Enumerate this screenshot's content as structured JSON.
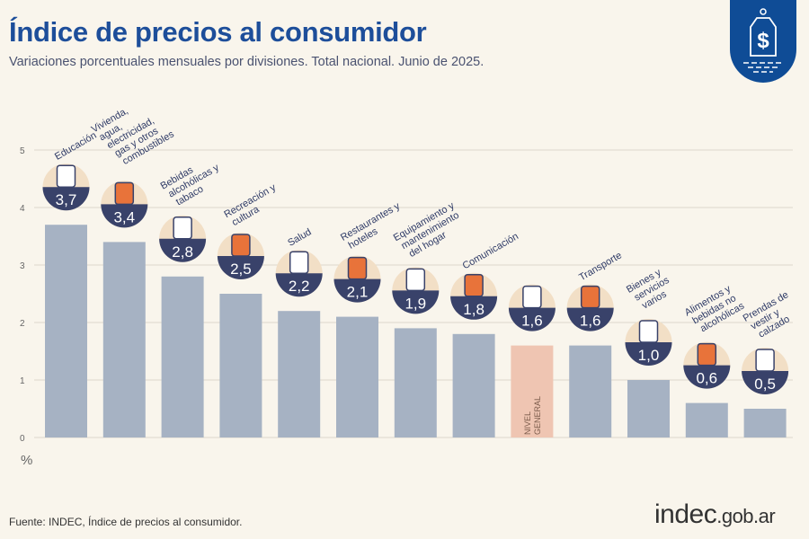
{
  "header": {
    "title": "Índice de precios al consumidor",
    "subtitle": "Variaciones porcentuales mensuales por divisiones. Total nacional. Junio de 2025."
  },
  "footer": {
    "source": "Fuente: INDEC, Índice de precios al consumidor.",
    "brand_main": "indec",
    "brand_suffix": ".gob.ar"
  },
  "logo": {
    "icon": "price-tag-dollar-icon",
    "color": "#0f4c96"
  },
  "chart_data": {
    "type": "bar",
    "ylim": [
      0,
      5
    ],
    "yticks": [
      0,
      1,
      2,
      3,
      4,
      5
    ],
    "ylabel": "%",
    "grid": true,
    "colors": {
      "bar": "#a6b2c3",
      "highlight": "#efc5b2",
      "badge": "#39426a"
    },
    "categories": [
      {
        "label": "Educación",
        "value": 3.7,
        "display": "3,7",
        "icon": "notebook-pencil-icon"
      },
      {
        "label": "Vivienda, agua, electricidad, gas y otros combustibles",
        "value": 3.4,
        "display": "3,4",
        "icon": "lightbulb-wrench-icon"
      },
      {
        "label": "Bebidas alcohólicas y tabaco",
        "value": 2.8,
        "display": "2,8",
        "icon": "wine-bottle-icon"
      },
      {
        "label": "Recreación y cultura",
        "value": 2.5,
        "display": "2,5",
        "icon": "beach-umbrella-icon"
      },
      {
        "label": "Salud",
        "value": 2.2,
        "display": "2,2",
        "icon": "medical-cross-icon"
      },
      {
        "label": "Restaurantes y hoteles",
        "value": 2.1,
        "display": "2,1",
        "icon": "plate-cutlery-icon"
      },
      {
        "label": "Equipamiento y mantenimiento del hogar",
        "value": 1.9,
        "display": "1,9",
        "icon": "washing-machine-icon"
      },
      {
        "label": "Comunicación",
        "value": 1.8,
        "display": "1,8",
        "icon": "smartphone-icon"
      },
      {
        "label": "NIVEL GENERAL",
        "value": 1.6,
        "display": "1,6",
        "icon": "shopping-bag-icon",
        "highlight": true
      },
      {
        "label": "Transporte",
        "value": 1.6,
        "display": "1,6",
        "icon": "car-sube-icon"
      },
      {
        "label": "Bienes y servicios varios",
        "value": 1.0,
        "display": "1,0",
        "icon": "comb-scissors-icon"
      },
      {
        "label": "Alimentos y bebidas no alcohólicas",
        "value": 0.6,
        "display": "0,6",
        "icon": "chicken-icon"
      },
      {
        "label": "Prendas de vestir y calzado",
        "value": 0.5,
        "display": "0,5",
        "icon": "tshirt-icon"
      }
    ]
  }
}
